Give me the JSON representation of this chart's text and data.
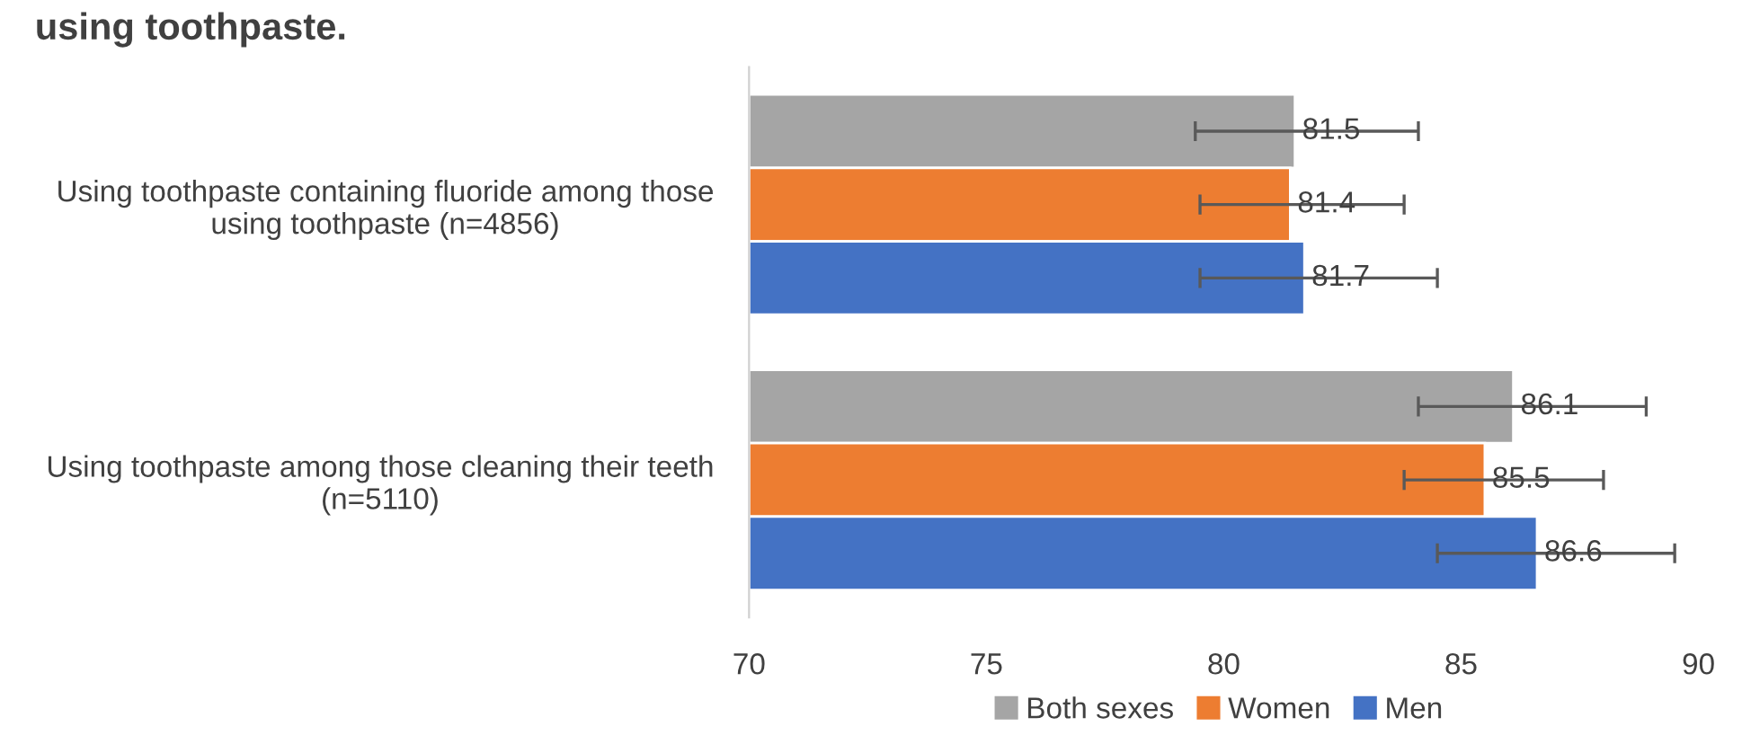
{
  "chart_data": {
    "type": "bar",
    "orientation": "horizontal",
    "title": "using toothpaste.",
    "categories": [
      "Using toothpaste containing fluoride among those\nusing toothpaste (n=4856)",
      "Using toothpaste among those cleaning their teeth\n(n=5110)"
    ],
    "series": [
      {
        "name": "Both sexes",
        "color": "#a5a5a5",
        "values": [
          81.5,
          86.1
        ],
        "errors": [
          [
            79.4,
            84.1
          ],
          [
            84.1,
            88.9
          ]
        ]
      },
      {
        "name": "Women",
        "color": "#ed7d31",
        "values": [
          81.4,
          85.5
        ],
        "errors": [
          [
            79.5,
            83.8
          ],
          [
            83.8,
            88.0
          ]
        ]
      },
      {
        "name": "Men",
        "color": "#4472c4",
        "values": [
          81.7,
          86.6
        ],
        "errors": [
          [
            79.5,
            84.5
          ],
          [
            84.5,
            89.5
          ]
        ]
      }
    ],
    "xlim": [
      70,
      90
    ],
    "xticks": [
      70,
      75,
      80,
      85,
      90
    ],
    "grid": false,
    "legend": "bottom",
    "data_labels": true
  }
}
